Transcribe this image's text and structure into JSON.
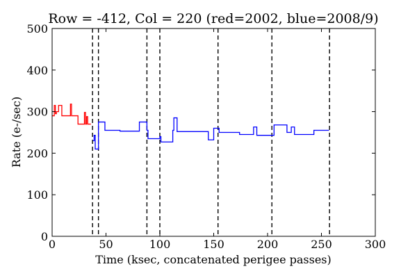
{
  "chart_data": {
    "type": "line",
    "title": "Row = -412, Col = 220 (red=2002, blue=2008/9)",
    "xlabel": "Time (ksec, concatenated perigee passes)",
    "ylabel": "Rate (e-/sec)",
    "xlim": [
      0,
      300
    ],
    "ylim": [
      0,
      500
    ],
    "x_ticks": [
      0,
      50,
      100,
      150,
      200,
      250,
      300
    ],
    "y_ticks": [
      0,
      100,
      200,
      300,
      400,
      500
    ],
    "grid": false,
    "step": true,
    "vertical_lines": [
      37.5,
      43,
      88,
      100,
      154,
      204,
      257.5
    ],
    "series": [
      {
        "color": "#ff0000",
        "x": [
          0,
          2,
          3,
          4,
          5,
          6,
          9,
          10,
          17,
          18,
          24,
          25,
          30,
          31,
          32,
          33,
          36
        ],
        "y": [
          290,
          315,
          295,
          300,
          300,
          315,
          290,
          290,
          318,
          290,
          270,
          270,
          298,
          270,
          288,
          270,
          270
        ]
      },
      {
        "color": "#0000ff",
        "x": [
          38,
          39,
          40,
          42,
          43,
          49,
          63,
          81,
          88,
          89,
          100,
          101,
          112,
          113,
          116,
          145,
          150,
          155,
          174,
          187,
          190,
          206,
          218,
          222,
          225,
          243,
          257
        ],
        "y": [
          230,
          243,
          210,
          210,
          275,
          255,
          253,
          275,
          255,
          235,
          240,
          227,
          255,
          285,
          252,
          232,
          260,
          250,
          245,
          263,
          243,
          268,
          250,
          263,
          245,
          255,
          255
        ]
      }
    ]
  }
}
